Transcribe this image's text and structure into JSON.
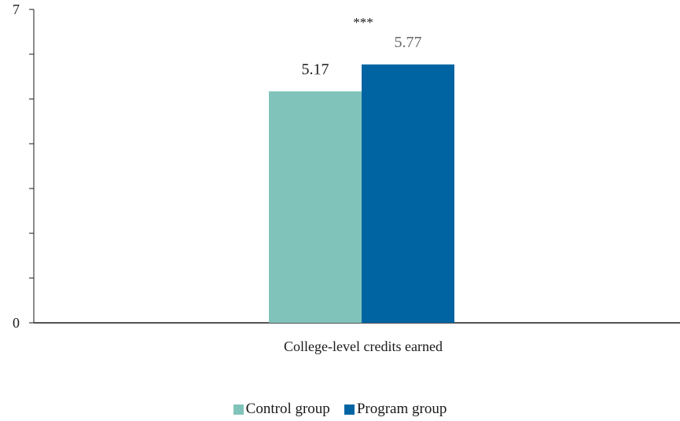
{
  "chart_data": {
    "type": "bar",
    "categories": [
      "College-level credits earned"
    ],
    "series": [
      {
        "name": "Control group",
        "values": [
          5.17
        ],
        "color": "#80c3ba",
        "label_color": "#1a1a1a"
      },
      {
        "name": "Program group",
        "values": [
          5.77
        ],
        "color": "#0064a3",
        "label_color": "#666666"
      }
    ],
    "data_labels": [
      "5.17",
      "5.77"
    ],
    "significance": "***",
    "ylim": [
      0,
      7
    ],
    "y_tick_labels": [
      "0",
      "7"
    ],
    "y_minor_ticks": [
      1,
      2,
      3,
      4,
      5,
      6
    ],
    "grid": false,
    "legend_position": "bottom-center"
  }
}
